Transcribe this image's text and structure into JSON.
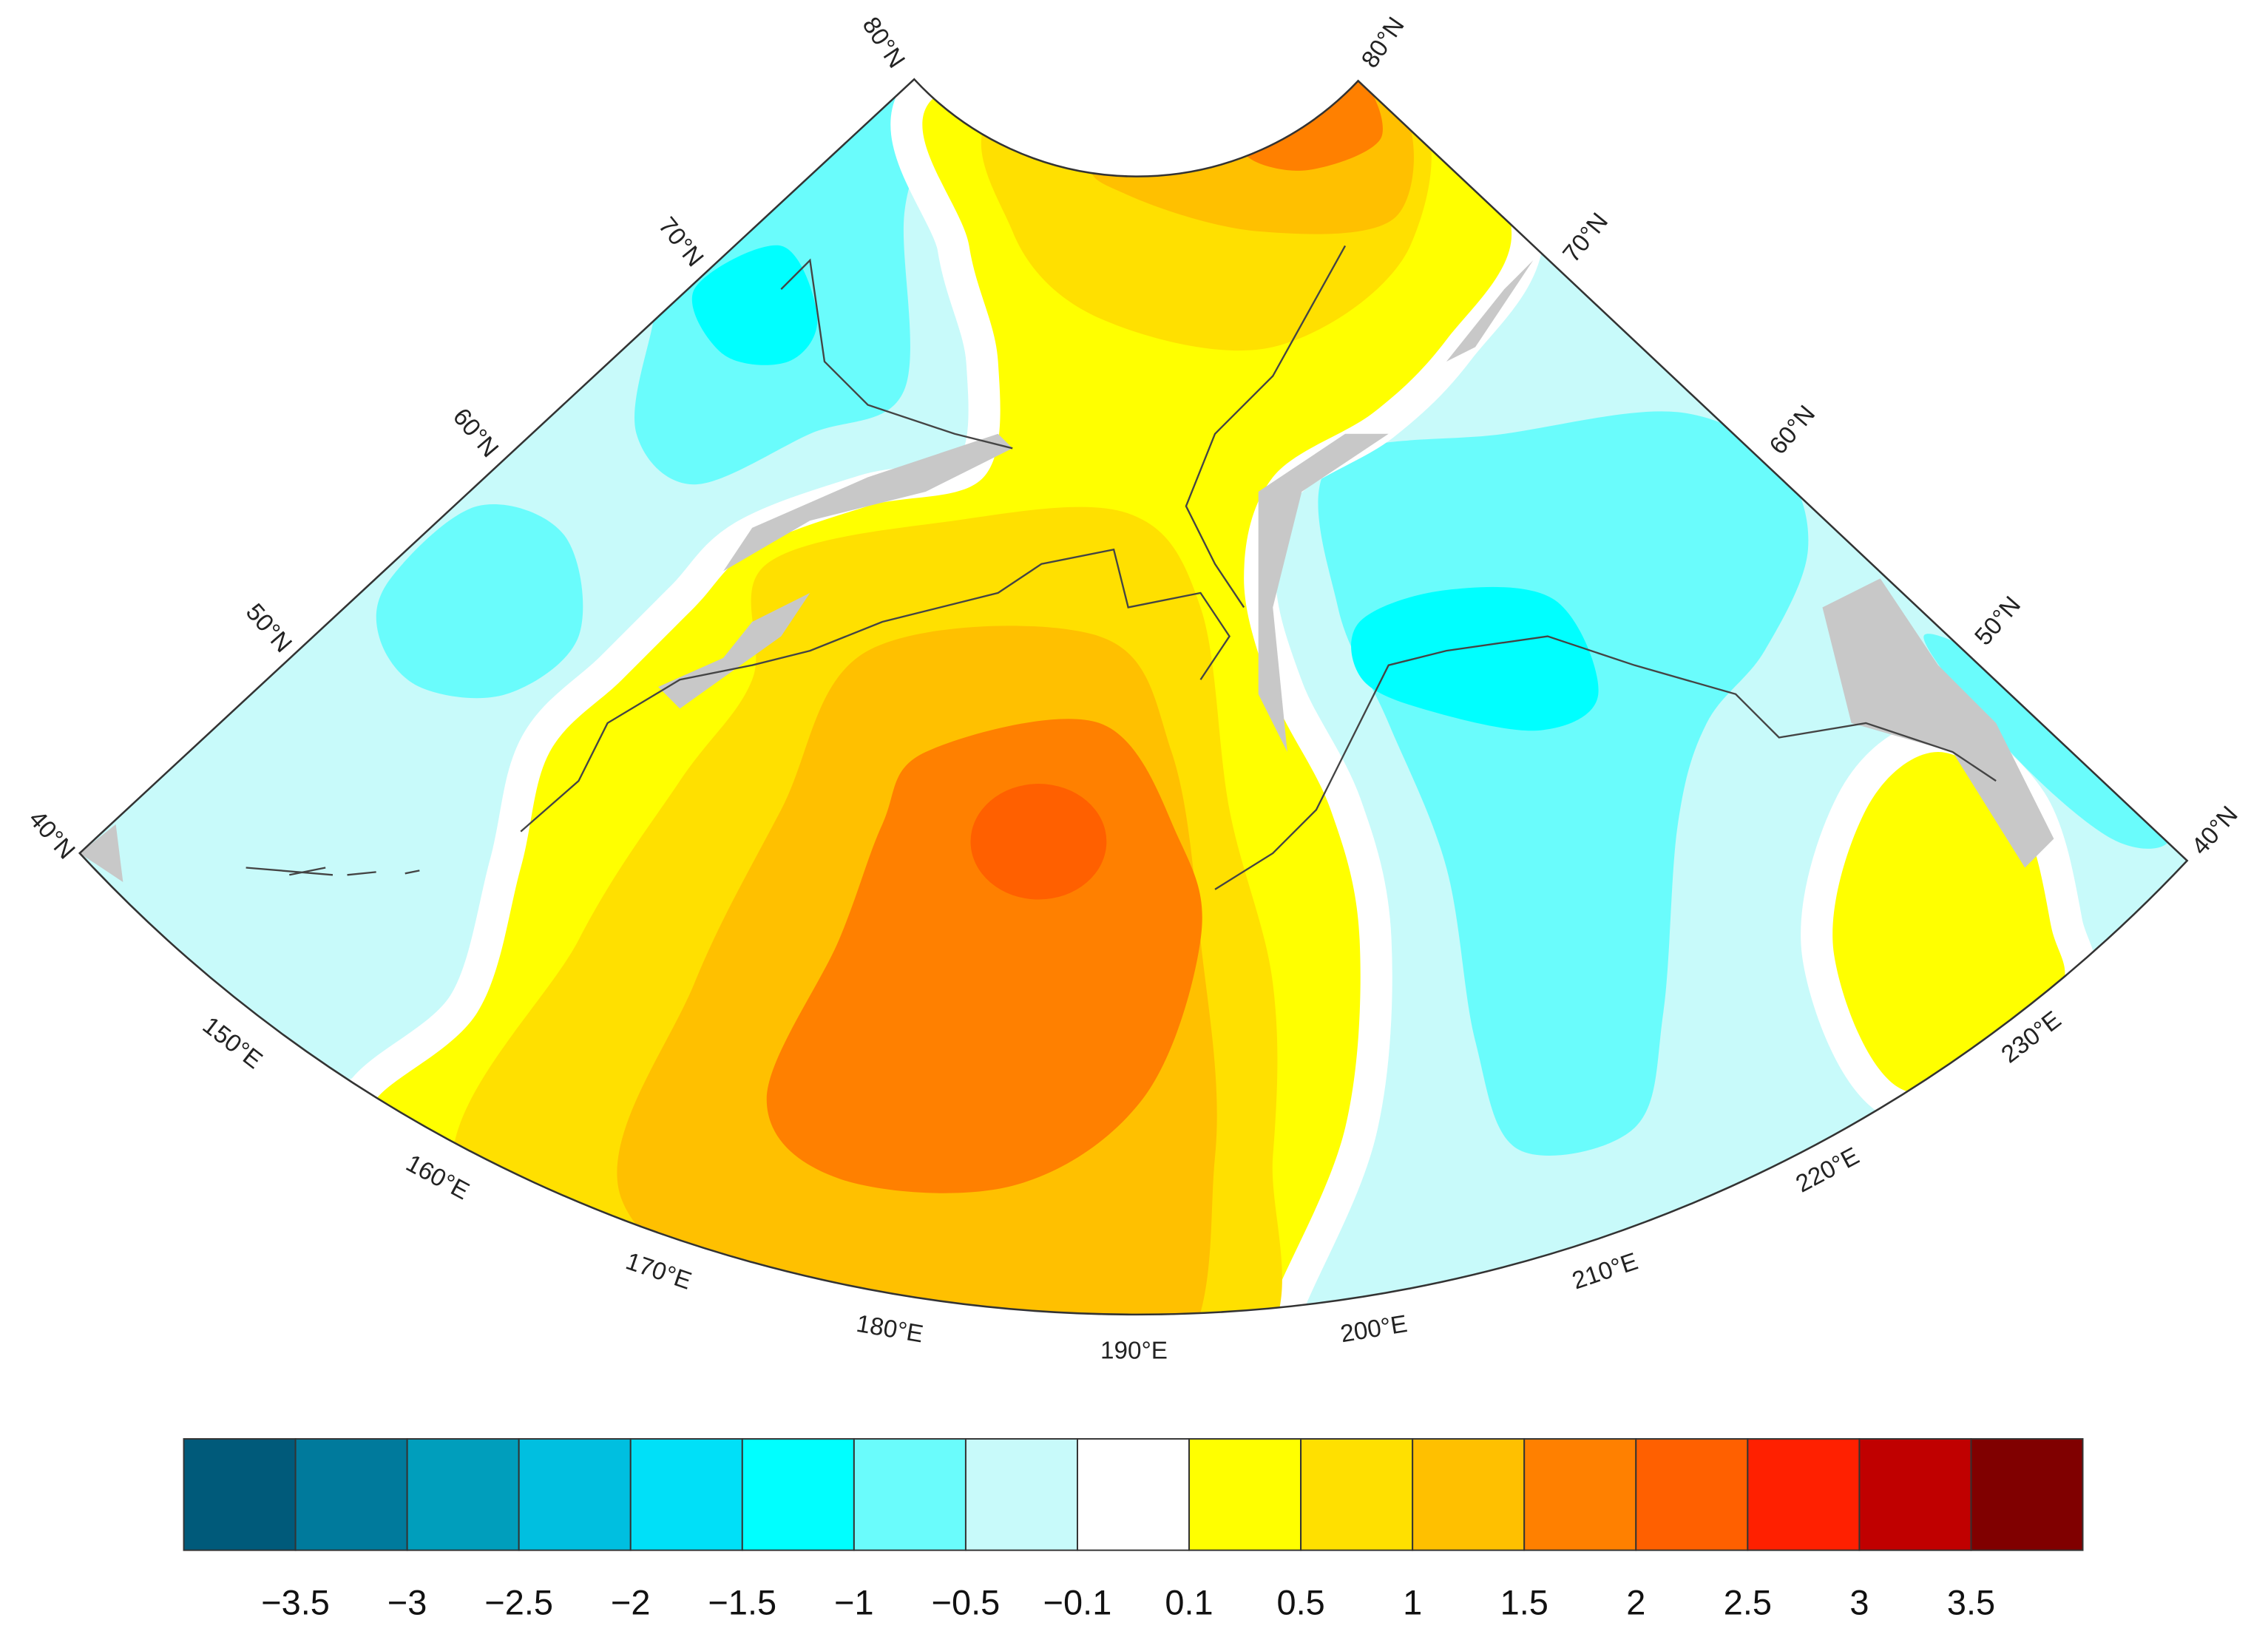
{
  "map": {
    "lat_labels_left": [
      "80°N",
      "70°N",
      "60°N",
      "50°N",
      "40°N"
    ],
    "lat_labels_right": [
      "80°N",
      "70°N",
      "60°N",
      "50°N",
      "40°N"
    ],
    "lon_labels": [
      "150°E",
      "160°E",
      "170°E",
      "180°E",
      "190°E",
      "200°E",
      "210°E",
      "220°E",
      "230°E"
    ]
  },
  "colorbar": {
    "colors": [
      "#005a7a",
      "#007a9c",
      "#009ebc",
      "#00bfe0",
      "#00e0f8",
      "#00ffff",
      "#6afcfc",
      "#c8fafa",
      "#ffffff",
      "#ffff00",
      "#ffe000",
      "#ffc000",
      "#ff8000",
      "#ff6000",
      "#ff2000",
      "#c00000",
      "#800000"
    ],
    "labels": [
      "−3.5",
      "−3",
      "−2.5",
      "−2",
      "−1.5",
      "−1",
      "−0.5",
      "−0.1",
      "0.1",
      "0.5",
      "1",
      "1.5",
      "2",
      "2.5",
      "3",
      "3.5"
    ]
  }
}
